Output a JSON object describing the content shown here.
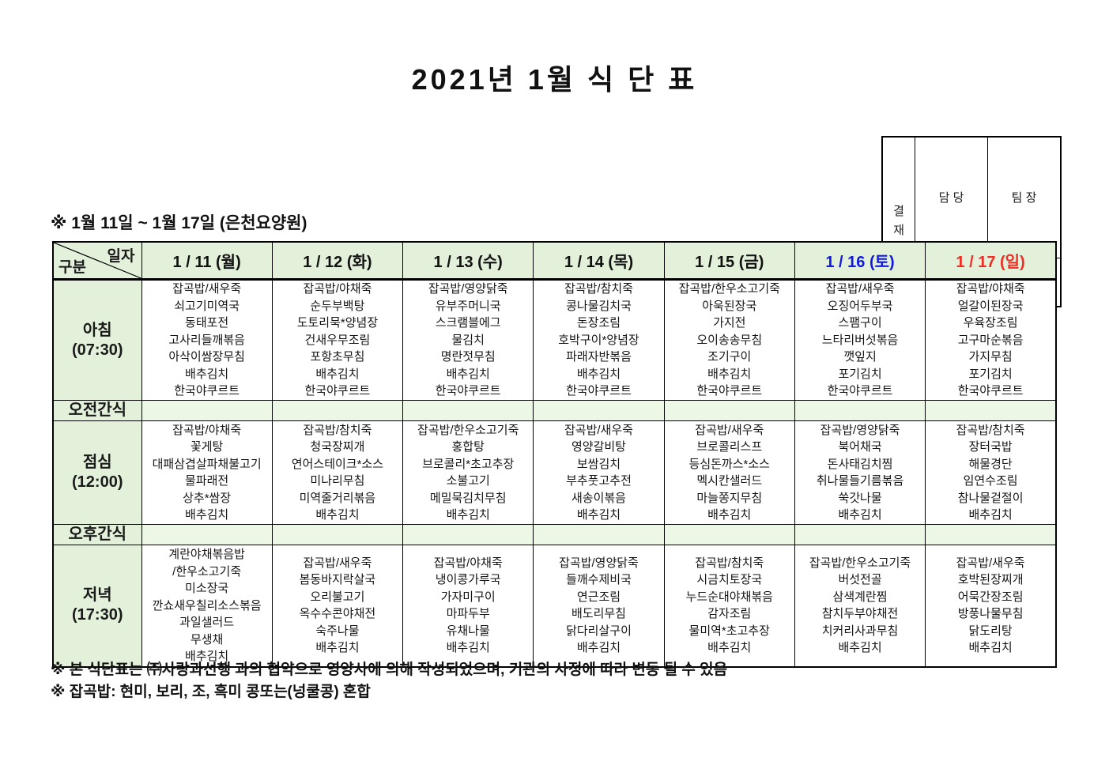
{
  "title": "2021년 1월 식 단 표",
  "approval": {
    "sign_label_chars": [
      "결",
      "재"
    ],
    "roles": [
      "담 당",
      "팀 장"
    ]
  },
  "subtitle": "※ 1월 11일 ~ 1월 17일 (은천요양원)",
  "colors": {
    "header_green": "#e3f1db",
    "snack_green": "#edf7e6",
    "weekday_text": "#111111",
    "saturday_text": "#1119e0",
    "sunday_text": "#ee2d24"
  },
  "table": {
    "corner": {
      "top": "일자",
      "bottom": "구분"
    },
    "columns": [
      {
        "label": "1 / 11 (월)",
        "color": "#111111"
      },
      {
        "label": "1 / 12 (화)",
        "color": "#111111"
      },
      {
        "label": "1 / 13 (수)",
        "color": "#111111"
      },
      {
        "label": "1 / 14 (목)",
        "color": "#111111"
      },
      {
        "label": "1 / 15 (금)",
        "color": "#111111"
      },
      {
        "label": "1 / 16 (토)",
        "color": "#1119e0"
      },
      {
        "label": "1 / 17 (일)",
        "color": "#ee2d24"
      }
    ],
    "rows": [
      {
        "type": "meal",
        "name": "아침",
        "time": "(07:30)",
        "menus": [
          [
            "잡곡밥/새우죽",
            "쇠고기미역국",
            "동태포전",
            "고사리들깨볶음",
            "아삭이쌈장무침",
            "배추김치",
            "한국야쿠르트"
          ],
          [
            "잡곡밥/야채죽",
            "순두부백탕",
            "도토리묵*양념장",
            "건새우무조림",
            "포항초무침",
            "배추김치",
            "한국야쿠르트"
          ],
          [
            "잡곡밥/영양닭죽",
            "유부주머니국",
            "스크램블에그",
            "물김치",
            "명란젓무침",
            "배추김치",
            "한국야쿠르트"
          ],
          [
            "잡곡밥/참치죽",
            "콩나물김치국",
            "돈장조림",
            "호박구이*양념장",
            "파래자반볶음",
            "배추김치",
            "한국야쿠르트"
          ],
          [
            "잡곡밥/한우소고기죽",
            "아욱된장국",
            "가지전",
            "오이송송무침",
            "조기구이",
            "배추김치",
            "한국야쿠르트"
          ],
          [
            "잡곡밥/새우죽",
            "오징어두부국",
            "스팸구이",
            "느타리버섯볶음",
            "깻잎지",
            "포기김치",
            "한국야쿠르트"
          ],
          [
            "잡곡밥/야채죽",
            "얼갈이된장국",
            "우육장조림",
            "고구마순볶음",
            "가지무침",
            "포기김치",
            "한국야쿠르트"
          ]
        ]
      },
      {
        "type": "snack",
        "name": "오전간식",
        "menus": [
          [],
          [],
          [],
          [],
          [],
          [],
          []
        ]
      },
      {
        "type": "meal",
        "name": "점심",
        "time": "(12:00)",
        "menus": [
          [
            "잡곡밥/야채죽",
            "꽃게탕",
            "대패삼겹살파채불고기",
            "물파래전",
            "상추*쌈장",
            "배추김치"
          ],
          [
            "잡곡밥/참치죽",
            "청국장찌개",
            "연어스테이크*소스",
            "미나리무침",
            "미역줄거리볶음",
            "배추김치"
          ],
          [
            "잡곡밥/한우소고기죽",
            "홍합탕",
            "브로콜리*초고추장",
            "소불고기",
            "메밀묵김치무침",
            "배추김치"
          ],
          [
            "잡곡밥/새우죽",
            "영양갈비탕",
            "보쌈김치",
            "부추풋고추전",
            "새송이볶음",
            "배추김치"
          ],
          [
            "잡곡밥/새우죽",
            "브로콜리스프",
            "등심돈까스*소스",
            "멕시칸샐러드",
            "마늘쫑지무침",
            "배추김치"
          ],
          [
            "잡곡밥/영양닭죽",
            "북어채국",
            "돈사태김치찜",
            "취나물들기름볶음",
            "쑥갓나물",
            "배추김치"
          ],
          [
            "잡곡밥/참치죽",
            "장터국밥",
            "해물경단",
            "임연수조림",
            "참나물겉절이",
            "배추김치"
          ]
        ]
      },
      {
        "type": "snack",
        "name": "오후간식",
        "menus": [
          [],
          [],
          [],
          [],
          [],
          [],
          []
        ]
      },
      {
        "type": "meal",
        "name": "저녁",
        "time": "(17:30)",
        "menus": [
          [
            "계란야채볶음밥",
            "/한우소고기죽",
            "미소장국",
            "깐쇼새우칠리소스볶음",
            "과일샐러드",
            "무생채",
            "배추김치"
          ],
          [
            "잡곡밥/새우죽",
            "봄동바지락살국",
            "오리불고기",
            "옥수수콘야채전",
            "숙주나물",
            "배추김치"
          ],
          [
            "잡곡밥/야채죽",
            "냉이콩가루국",
            "가자미구이",
            "마파두부",
            "유채나물",
            "배추김치"
          ],
          [
            "잡곡밥/영양닭죽",
            "들깨수제비국",
            "연근조림",
            "배도리무침",
            "닭다리살구이",
            "배추김치"
          ],
          [
            "잡곡밥/참치죽",
            "시금치토장국",
            "누드순대야채볶음",
            "감자조림",
            "물미역*초고추장",
            "배추김치"
          ],
          [
            "잡곡밥/한우소고기죽",
            "버섯전골",
            "삼색계란찜",
            "참치두부야채전",
            "치커리사과무침",
            "배추김치"
          ],
          [
            "잡곡밥/새우죽",
            "호박된장찌개",
            "어묵간장조림",
            "방풍나물무침",
            "닭도리탕",
            "배추김치"
          ]
        ]
      }
    ]
  },
  "notes": [
    "※ 본 식단표는 ㈜사랑과선행 과의 협약으로 영양사에 의해 작성되었으며, 기관의 사정에 따라 변동 될 수 있음",
    "※ 잡곡밥: 현미, 보리, 조, 흑미 콩또는(넝쿨콩) 혼합"
  ]
}
